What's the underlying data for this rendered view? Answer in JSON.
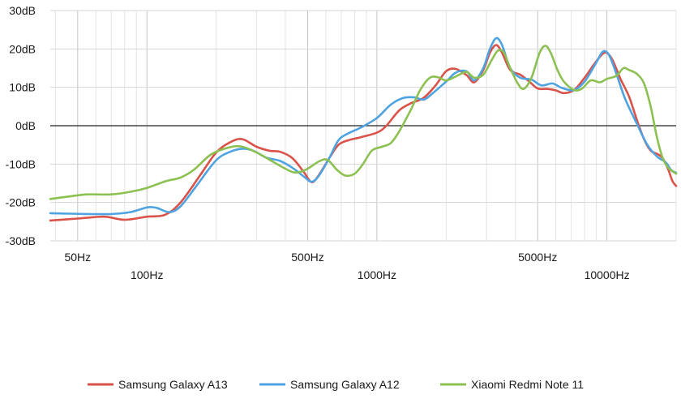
{
  "chart_data": {
    "type": "line",
    "title": "",
    "xlabel": "",
    "ylabel": "",
    "xscale": "log",
    "xlim": [
      38,
      20000
    ],
    "ylim": [
      -30,
      30
    ],
    "grid": true,
    "legend_position": "bottom",
    "y_ticks": [
      30,
      20,
      10,
      0,
      -10,
      -20,
      -30
    ],
    "y_tick_labels": [
      "30dB",
      "20dB",
      "10dB",
      "0dB",
      "-10dB",
      "-20dB",
      "-30dB"
    ],
    "x_ticks_row1": [
      {
        "value": 50,
        "label": "50Hz"
      },
      {
        "value": 500,
        "label": "500Hz"
      },
      {
        "value": 5000,
        "label": "5000Hz"
      }
    ],
    "x_ticks_row2": [
      {
        "value": 100,
        "label": "100Hz"
      },
      {
        "value": 1000,
        "label": "1000Hz"
      },
      {
        "value": 10000,
        "label": "10000Hz"
      }
    ],
    "series": [
      {
        "name": "Samsung Galaxy A13",
        "color": "#d9534a",
        "points": [
          [
            38,
            -24.7
          ],
          [
            50,
            -24.2
          ],
          [
            65,
            -23.7
          ],
          [
            80,
            -24.5
          ],
          [
            100,
            -23.7
          ],
          [
            120,
            -23.2
          ],
          [
            140,
            -20
          ],
          [
            170,
            -13
          ],
          [
            200,
            -7
          ],
          [
            230,
            -4.3
          ],
          [
            260,
            -3.5
          ],
          [
            300,
            -5.5
          ],
          [
            340,
            -6.5
          ],
          [
            380,
            -6.8
          ],
          [
            430,
            -8.5
          ],
          [
            480,
            -12
          ],
          [
            520,
            -14.7
          ],
          [
            560,
            -12.8
          ],
          [
            620,
            -8.5
          ],
          [
            680,
            -5
          ],
          [
            750,
            -3.8
          ],
          [
            850,
            -3
          ],
          [
            1000,
            -1.8
          ],
          [
            1100,
            0
          ],
          [
            1250,
            4
          ],
          [
            1400,
            5.8
          ],
          [
            1600,
            7.3
          ],
          [
            1800,
            10.5
          ],
          [
            2000,
            14.2
          ],
          [
            2200,
            14.8
          ],
          [
            2450,
            13.2
          ],
          [
            2650,
            11.3
          ],
          [
            2900,
            14.5
          ],
          [
            3100,
            19
          ],
          [
            3300,
            21
          ],
          [
            3500,
            19
          ],
          [
            3800,
            14.5
          ],
          [
            4200,
            13.3
          ],
          [
            4600,
            11.5
          ],
          [
            5000,
            9.7
          ],
          [
            5500,
            9.6
          ],
          [
            6000,
            9.2
          ],
          [
            6500,
            8.5
          ],
          [
            7200,
            9.3
          ],
          [
            8000,
            12.5
          ],
          [
            8800,
            16
          ],
          [
            9500,
            18.5
          ],
          [
            10000,
            19
          ],
          [
            10600,
            17
          ],
          [
            11500,
            12
          ],
          [
            12500,
            7.5
          ],
          [
            13500,
            1.5
          ],
          [
            14500,
            -3.5
          ],
          [
            15500,
            -6.5
          ],
          [
            16500,
            -7.3
          ],
          [
            17500,
            -8.5
          ],
          [
            18500,
            -11.5
          ],
          [
            19300,
            -14.5
          ],
          [
            20000,
            -15.7
          ]
        ]
      },
      {
        "name": "Samsung Galaxy A12",
        "color": "#4fa3e0",
        "points": [
          [
            38,
            -22.8
          ],
          [
            55,
            -23
          ],
          [
            70,
            -23
          ],
          [
            85,
            -22.5
          ],
          [
            100,
            -21.3
          ],
          [
            110,
            -21.4
          ],
          [
            125,
            -22.5
          ],
          [
            140,
            -21
          ],
          [
            165,
            -15.5
          ],
          [
            200,
            -9
          ],
          [
            230,
            -6.8
          ],
          [
            260,
            -6
          ],
          [
            290,
            -6.5
          ],
          [
            330,
            -8.3
          ],
          [
            380,
            -9.2
          ],
          [
            430,
            -11
          ],
          [
            480,
            -13.2
          ],
          [
            520,
            -14.6
          ],
          [
            560,
            -13
          ],
          [
            620,
            -8.5
          ],
          [
            680,
            -3.8
          ],
          [
            750,
            -2
          ],
          [
            850,
            -0.5
          ],
          [
            1000,
            2
          ],
          [
            1150,
            5.5
          ],
          [
            1300,
            7.2
          ],
          [
            1450,
            7.4
          ],
          [
            1600,
            6.8
          ],
          [
            1750,
            8.5
          ],
          [
            2000,
            11.5
          ],
          [
            2200,
            13.8
          ],
          [
            2450,
            14.2
          ],
          [
            2650,
            11.8
          ],
          [
            2900,
            15
          ],
          [
            3100,
            20
          ],
          [
            3300,
            22.8
          ],
          [
            3500,
            21
          ],
          [
            3800,
            15
          ],
          [
            4200,
            12.5
          ],
          [
            4700,
            12
          ],
          [
            5200,
            10.5
          ],
          [
            5800,
            11
          ],
          [
            6400,
            9.8
          ],
          [
            7200,
            9.3
          ],
          [
            8000,
            11.5
          ],
          [
            9000,
            16.5
          ],
          [
            9600,
            19.3
          ],
          [
            10200,
            18.5
          ],
          [
            11000,
            13.5
          ],
          [
            12000,
            7
          ],
          [
            13500,
            0.5
          ],
          [
            15000,
            -5
          ],
          [
            16500,
            -8
          ],
          [
            18000,
            -9.5
          ],
          [
            19000,
            -11.5
          ],
          [
            20000,
            -12.3
          ]
        ]
      },
      {
        "name": "Xiaomi Redmi Note 11",
        "color": "#8cc152",
        "points": [
          [
            38,
            -19.1
          ],
          [
            45,
            -18.5
          ],
          [
            55,
            -17.9
          ],
          [
            70,
            -17.9
          ],
          [
            85,
            -17.2
          ],
          [
            100,
            -16.2
          ],
          [
            120,
            -14.5
          ],
          [
            140,
            -13.5
          ],
          [
            160,
            -11.5
          ],
          [
            190,
            -7.5
          ],
          [
            230,
            -5.6
          ],
          [
            260,
            -5.5
          ],
          [
            300,
            -7
          ],
          [
            340,
            -8.8
          ],
          [
            400,
            -11.2
          ],
          [
            440,
            -12.2
          ],
          [
            490,
            -11.5
          ],
          [
            560,
            -9.3
          ],
          [
            610,
            -8.9
          ],
          [
            670,
            -11.5
          ],
          [
            730,
            -13
          ],
          [
            800,
            -12.5
          ],
          [
            870,
            -10
          ],
          [
            950,
            -6.5
          ],
          [
            1050,
            -5.5
          ],
          [
            1150,
            -4.5
          ],
          [
            1250,
            -1.5
          ],
          [
            1400,
            4
          ],
          [
            1550,
            9.5
          ],
          [
            1700,
            12.5
          ],
          [
            1850,
            12.6
          ],
          [
            2000,
            11.8
          ],
          [
            2200,
            12.8
          ],
          [
            2450,
            14
          ],
          [
            2650,
            12.5
          ],
          [
            2900,
            13.3
          ],
          [
            3150,
            17
          ],
          [
            3350,
            19.5
          ],
          [
            3550,
            19.2
          ],
          [
            3800,
            15
          ],
          [
            4100,
            11
          ],
          [
            4350,
            9.6
          ],
          [
            4700,
            12.5
          ],
          [
            5100,
            19
          ],
          [
            5400,
            20.8
          ],
          [
            5700,
            19
          ],
          [
            6100,
            14.5
          ],
          [
            6500,
            11.5
          ],
          [
            7200,
            9.3
          ],
          [
            7800,
            9.7
          ],
          [
            8500,
            11.8
          ],
          [
            9300,
            11.3
          ],
          [
            10000,
            12.2
          ],
          [
            11000,
            13
          ],
          [
            11800,
            15
          ],
          [
            12500,
            14.5
          ],
          [
            13500,
            13.5
          ],
          [
            14500,
            11
          ],
          [
            15500,
            5
          ],
          [
            16500,
            -3
          ],
          [
            17500,
            -8.5
          ],
          [
            18500,
            -11
          ],
          [
            20000,
            -12.5
          ]
        ]
      }
    ]
  }
}
